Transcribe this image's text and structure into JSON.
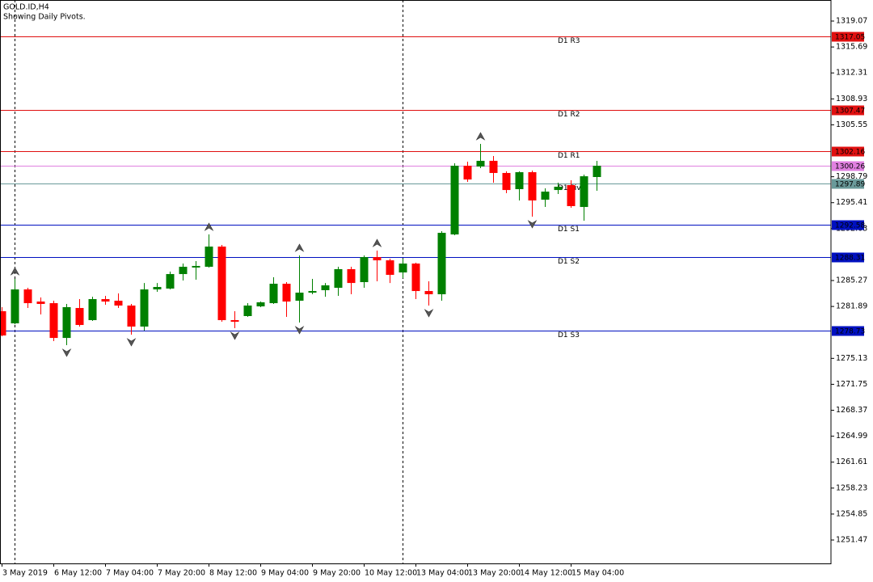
{
  "chart_data": {
    "type": "candlestick",
    "title": "GOLD.ID,H4",
    "subtitle": "Showing Daily Pivots.",
    "categories": [
      "3 May 2019",
      null,
      null,
      null,
      "6 May 12:00",
      null,
      null,
      null,
      "7 May 04:00",
      null,
      null,
      null,
      "7 May 20:00",
      null,
      null,
      null,
      "8 May 12:00",
      null,
      null,
      null,
      "9 May 04:00",
      null,
      null,
      null,
      "9 May 20:00",
      null,
      null,
      null,
      "10 May 12:00",
      null,
      null,
      null,
      "13 May 04:00",
      null,
      null,
      null,
      "13 May 20:00",
      null,
      null,
      null,
      "14 May 12:00",
      null,
      null,
      null,
      "15 May 04:00",
      null,
      null
    ],
    "open": [
      1281.27,
      1279.69,
      1284.11,
      1282.53,
      1282.32,
      1277.79,
      1281.69,
      1280.11,
      1282.85,
      1282.64,
      1282.01,
      1279.27,
      1284.11,
      1284.22,
      1286.11,
      1286.96,
      1287.06,
      1289.69,
      1280.11,
      1280.64,
      1281.9,
      1282.32,
      1284.85,
      1282.64,
      1283.69,
      1284.01,
      1284.32,
      1286.75,
      1285.06,
      1288.32,
      1287.9,
      1286.32,
      1287.48,
      1283.9,
      1283.48,
      1291.27,
      1300.22,
      1300.12,
      1300.86,
      1299.28,
      1297.17,
      1299.38,
      1295.8,
      1297.06,
      1297.7,
      1294.85,
      1298.75
    ],
    "high": [
      1281.8,
      1285.48,
      1284.32,
      1283.06,
      1282.64,
      1282.22,
      1282.85,
      1283.16,
      1283.27,
      1283.59,
      1282.22,
      1284.95,
      1284.95,
      1286.43,
      1287.48,
      1287.8,
      1291.27,
      1289.9,
      1281.27,
      1282.32,
      1282.53,
      1285.69,
      1285.06,
      1288.54,
      1285.48,
      1284.95,
      1287.06,
      1287.06,
      1288.54,
      1289.17,
      1288.11,
      1288.11,
      1287.59,
      1285.17,
      1291.69,
      1300.54,
      1300.75,
      1303.07,
      1301.49,
      1299.49,
      1299.49,
      1299.59,
      1297.28,
      1298.01,
      1298.33,
      1299.07,
      1300.86
    ],
    "low": [
      1278.01,
      1279.58,
      1281.69,
      1280.85,
      1277.37,
      1276.85,
      1279.27,
      1280.01,
      1282.11,
      1281.69,
      1278.22,
      1278.74,
      1283.8,
      1284.11,
      1285.27,
      1285.38,
      1286.96,
      1279.9,
      1279.06,
      1280.53,
      1281.8,
      1282.22,
      1280.53,
      1279.8,
      1283.48,
      1283.16,
      1283.27,
      1283.48,
      1284.32,
      1285.17,
      1284.95,
      1285.59,
      1282.85,
      1282.01,
      1282.64,
      1291.17,
      1298.12,
      1299.91,
      1298.01,
      1296.64,
      1295.7,
      1293.59,
      1294.85,
      1296.54,
      1294.75,
      1293.06,
      1296.96
    ],
    "close": [
      1278.11,
      1284.11,
      1282.32,
      1282.22,
      1277.79,
      1281.8,
      1279.48,
      1282.85,
      1282.53,
      1282.01,
      1279.27,
      1284.11,
      1284.43,
      1286.11,
      1287.06,
      1287.17,
      1289.69,
      1280.11,
      1279.9,
      1282.01,
      1282.43,
      1284.85,
      1282.53,
      1283.69,
      1283.9,
      1284.64,
      1286.75,
      1284.95,
      1288.32,
      1287.9,
      1286.01,
      1287.48,
      1283.9,
      1283.48,
      1291.48,
      1300.22,
      1298.43,
      1300.86,
      1299.28,
      1297.06,
      1299.38,
      1295.7,
      1296.85,
      1297.49,
      1294.96,
      1298.85,
      1300.22
    ],
    "up_color": "#008000",
    "down_color": "#ff0000",
    "fractals_up": [
      1,
      16,
      23,
      29,
      37
    ],
    "fractals_down": [
      5,
      10,
      18,
      23,
      33,
      41
    ],
    "separators": [
      1,
      31
    ],
    "ylim": [
      1248.42,
      1321.81
    ],
    "yticks": [
      1319.07,
      1315.69,
      1312.31,
      1308.93,
      1305.55,
      1298.79,
      1295.41,
      1292.03,
      1285.27,
      1281.89,
      1275.13,
      1271.75,
      1268.37,
      1264.99,
      1261.61,
      1258.23,
      1254.85,
      1251.47
    ],
    "levels": [
      {
        "name": "D1 R3",
        "value": 1317.05,
        "color": "#e01010"
      },
      {
        "name": "D1 R2",
        "value": 1307.47,
        "color": "#e01010"
      },
      {
        "name": "D1 R1",
        "value": 1302.16,
        "color": "#e01010"
      },
      {
        "value": 1300.26,
        "color": "#e080e0"
      },
      {
        "name": "D1 Pivot",
        "value": 1297.89,
        "color": "#6a9a9a"
      },
      {
        "name": "D1 S1",
        "value": 1292.58,
        "color": "#0010c0"
      },
      {
        "name": "D1 S2",
        "value": 1288.31,
        "color": "#0010c0"
      },
      {
        "name": "D1 S3",
        "value": 1278.73,
        "color": "#0010c0"
      }
    ]
  }
}
